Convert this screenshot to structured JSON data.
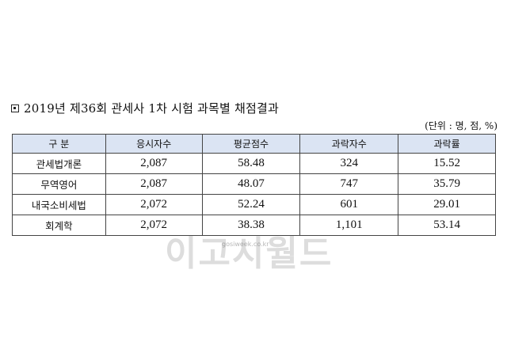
{
  "title": "2019년 제36회 관세사 1차 시험 과목별 채점결과",
  "unit": "(단위 : 명, 점, %)",
  "table": {
    "headers": [
      "구 분",
      "응시자수",
      "평균점수",
      "과락자수",
      "과락률"
    ],
    "rows": [
      [
        "관세법개론",
        "2,087",
        "58.48",
        "324",
        "15.52"
      ],
      [
        "무역영어",
        "2,087",
        "48.07",
        "747",
        "35.79"
      ],
      [
        "내국소비세법",
        "2,072",
        "52.24",
        "601",
        "29.01"
      ],
      [
        "회계학",
        "2,072",
        "38.38",
        "1,101",
        "53.14"
      ]
    ]
  },
  "watermark": {
    "text": "이고시월드",
    "sub": "gosiweek.co.kr"
  }
}
